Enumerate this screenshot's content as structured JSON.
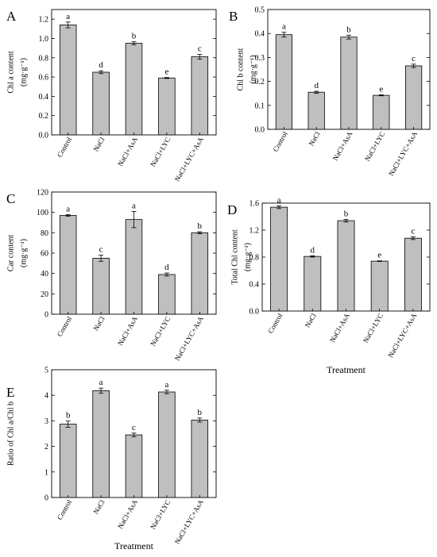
{
  "chart_data": [
    {
      "type": "bar",
      "panel": "A",
      "categories": [
        "Control",
        "NaCl",
        "NaCl+AsA",
        "NaCl+LYC",
        "NaCl+LYC+AsA"
      ],
      "values": [
        1.14,
        0.65,
        0.95,
        0.59,
        0.81
      ],
      "errors": [
        0.03,
        0.015,
        0.015,
        0.005,
        0.025
      ],
      "significance": [
        "a",
        "d",
        "b",
        "e",
        "c"
      ],
      "ylabel": "Chl a content",
      "yunit": "(mg·g⁻¹)",
      "xlabel": "",
      "ylim": [
        0,
        1.3
      ],
      "yticks": [
        0.0,
        0.2,
        0.4,
        0.6,
        0.8,
        1.0,
        1.2
      ],
      "ytick_labels": [
        "0.0",
        "0.2",
        "0.4",
        "0.6",
        "0.8",
        "1.0",
        "1.2"
      ]
    },
    {
      "type": "bar",
      "panel": "B",
      "categories": [
        "Control",
        "NaCl",
        "NaCl+AsA",
        "NaCl+LYC",
        "NaCl+LYC+AsA"
      ],
      "values": [
        0.395,
        0.155,
        0.385,
        0.142,
        0.265
      ],
      "errors": [
        0.01,
        0.004,
        0.008,
        0.002,
        0.007
      ],
      "significance": [
        "a",
        "d",
        "b",
        "e",
        "c"
      ],
      "ylabel": "Chl b content",
      "yunit": "(mg·g⁻¹)",
      "xlabel": "",
      "ylim": [
        0,
        0.5
      ],
      "yticks": [
        0.0,
        0.1,
        0.2,
        0.3,
        0.4,
        0.5
      ],
      "ytick_labels": [
        "0.0",
        "0.1",
        "0.2",
        "0.3",
        "0.4",
        "0.5"
      ]
    },
    {
      "type": "bar",
      "panel": "C",
      "categories": [
        "Control",
        "NaCl",
        "NaCl+AsA",
        "NaCl+LYC",
        "NaCl+LYC+AsA"
      ],
      "values": [
        97,
        55,
        93,
        39,
        80
      ],
      "errors": [
        0.8,
        3,
        8,
        1.5,
        1
      ],
      "significance": [
        "a",
        "c",
        "a",
        "d",
        "b"
      ],
      "ylabel": "Car content",
      "yunit": "(mg·g⁻¹)",
      "xlabel": "",
      "ylim": [
        0,
        120
      ],
      "yticks": [
        0,
        20,
        40,
        60,
        80,
        100,
        120
      ],
      "ytick_labels": [
        "0",
        "20",
        "40",
        "60",
        "80",
        "100",
        "120"
      ]
    },
    {
      "type": "bar",
      "panel": "D",
      "categories": [
        "Control",
        "NaCl",
        "NaCl+AsA",
        "NaCl+LYC",
        "NaCl+LYC+AsA"
      ],
      "values": [
        1.54,
        0.81,
        1.34,
        0.74,
        1.08
      ],
      "errors": [
        0.02,
        0.01,
        0.02,
        0.005,
        0.02
      ],
      "significance": [
        "a",
        "d",
        "b",
        "e",
        "c"
      ],
      "ylabel": "Total Chl content",
      "yunit": "(mg·g⁻¹)",
      "xlabel": "Treatment",
      "ylim": [
        0,
        1.6
      ],
      "yticks": [
        0.0,
        0.4,
        0.8,
        1.2,
        1.6
      ],
      "ytick_labels": [
        "0.0",
        "0.4",
        "0.8",
        "1.2",
        "1.6"
      ]
    },
    {
      "type": "bar",
      "panel": "E",
      "categories": [
        "Control",
        "NaCl",
        "NaCl+AsA",
        "NaCl+LYC",
        "NaCl+LYC+AsA"
      ],
      "values": [
        2.87,
        4.18,
        2.45,
        4.13,
        3.03
      ],
      "errors": [
        0.12,
        0.1,
        0.07,
        0.07,
        0.08
      ],
      "significance": [
        "b",
        "a",
        "c",
        "a",
        "b"
      ],
      "ylabel": "Ratio of Chl a/Chl b",
      "yunit": "",
      "xlabel": "Treatment",
      "ylim": [
        0,
        5
      ],
      "yticks": [
        0,
        1,
        2,
        3,
        4,
        5
      ],
      "ytick_labels": [
        "0",
        "1",
        "2",
        "3",
        "4",
        "5"
      ]
    }
  ]
}
